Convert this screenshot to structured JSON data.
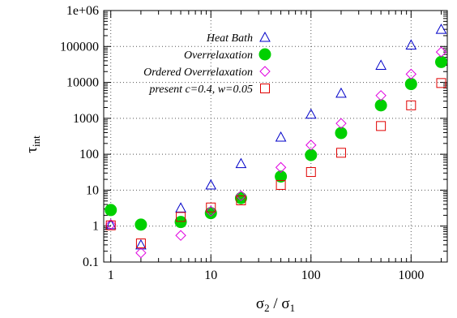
{
  "chart_data": {
    "type": "scatter",
    "xscale": "log",
    "yscale": "log",
    "xlim": [
      0.85,
      2300
    ],
    "ylim": [
      0.1,
      1000000
    ],
    "grid": true,
    "legend_placement": "top-left-of-center",
    "xlabel": {
      "main": "σ",
      "sub1": "2",
      "mid": " / σ",
      "sub2": "1"
    },
    "ylabel": {
      "main": "τ",
      "sub": "int"
    },
    "x_ticks": [
      {
        "value": 1,
        "label": "1"
      },
      {
        "value": 10,
        "label": "10"
      },
      {
        "value": 100,
        "label": "100"
      },
      {
        "value": 1000,
        "label": "1000"
      }
    ],
    "y_ticks": [
      {
        "value": 0.1,
        "label": "0.1"
      },
      {
        "value": 1,
        "label": "1"
      },
      {
        "value": 10,
        "label": "10"
      },
      {
        "value": 100,
        "label": "100"
      },
      {
        "value": 1000,
        "label": "1000"
      },
      {
        "value": 10000,
        "label": "10000"
      },
      {
        "value": 100000,
        "label": "100000"
      },
      {
        "value": 1000000,
        "label": "1e+06"
      }
    ],
    "series": [
      {
        "name": "Heat Bath",
        "marker": "triangle",
        "color": "#0000c8",
        "points": [
          [
            1,
            1.1
          ],
          [
            2,
            0.3
          ],
          [
            5,
            3.2
          ],
          [
            10,
            14
          ],
          [
            20,
            55
          ],
          [
            50,
            300
          ],
          [
            100,
            1300
          ],
          [
            200,
            5000
          ],
          [
            500,
            30000
          ],
          [
            1000,
            110000
          ],
          [
            2000,
            300000
          ]
        ]
      },
      {
        "name": "Overrelaxation",
        "marker": "filled-circle",
        "color": "#00d000",
        "points": [
          [
            1,
            2.8
          ],
          [
            2,
            1.1
          ],
          [
            5,
            1.3
          ],
          [
            10,
            2.3
          ],
          [
            20,
            6
          ],
          [
            50,
            24
          ],
          [
            100,
            95
          ],
          [
            200,
            390
          ],
          [
            500,
            2300
          ],
          [
            1000,
            9000
          ],
          [
            2000,
            37000
          ]
        ]
      },
      {
        "name": "Ordered Overrelaxation",
        "marker": "diamond",
        "color": "#e000e0",
        "points": [
          [
            1,
            1.1
          ],
          [
            2,
            0.18
          ],
          [
            5,
            0.55
          ],
          [
            10,
            2.6
          ],
          [
            20,
            7
          ],
          [
            50,
            43
          ],
          [
            100,
            180
          ],
          [
            200,
            720
          ],
          [
            500,
            4300
          ],
          [
            1000,
            17000
          ],
          [
            2000,
            70000
          ]
        ]
      },
      {
        "name": "present c=0.4, w=0.05",
        "marker": "square",
        "color": "#e00000",
        "points": [
          [
            1,
            1.05
          ],
          [
            2,
            0.33
          ],
          [
            5,
            1.8
          ],
          [
            10,
            3.3
          ],
          [
            20,
            5.2
          ],
          [
            50,
            14
          ],
          [
            100,
            32
          ],
          [
            200,
            110
          ],
          [
            500,
            610
          ],
          [
            1000,
            2300
          ],
          [
            2000,
            9600
          ]
        ]
      }
    ]
  }
}
